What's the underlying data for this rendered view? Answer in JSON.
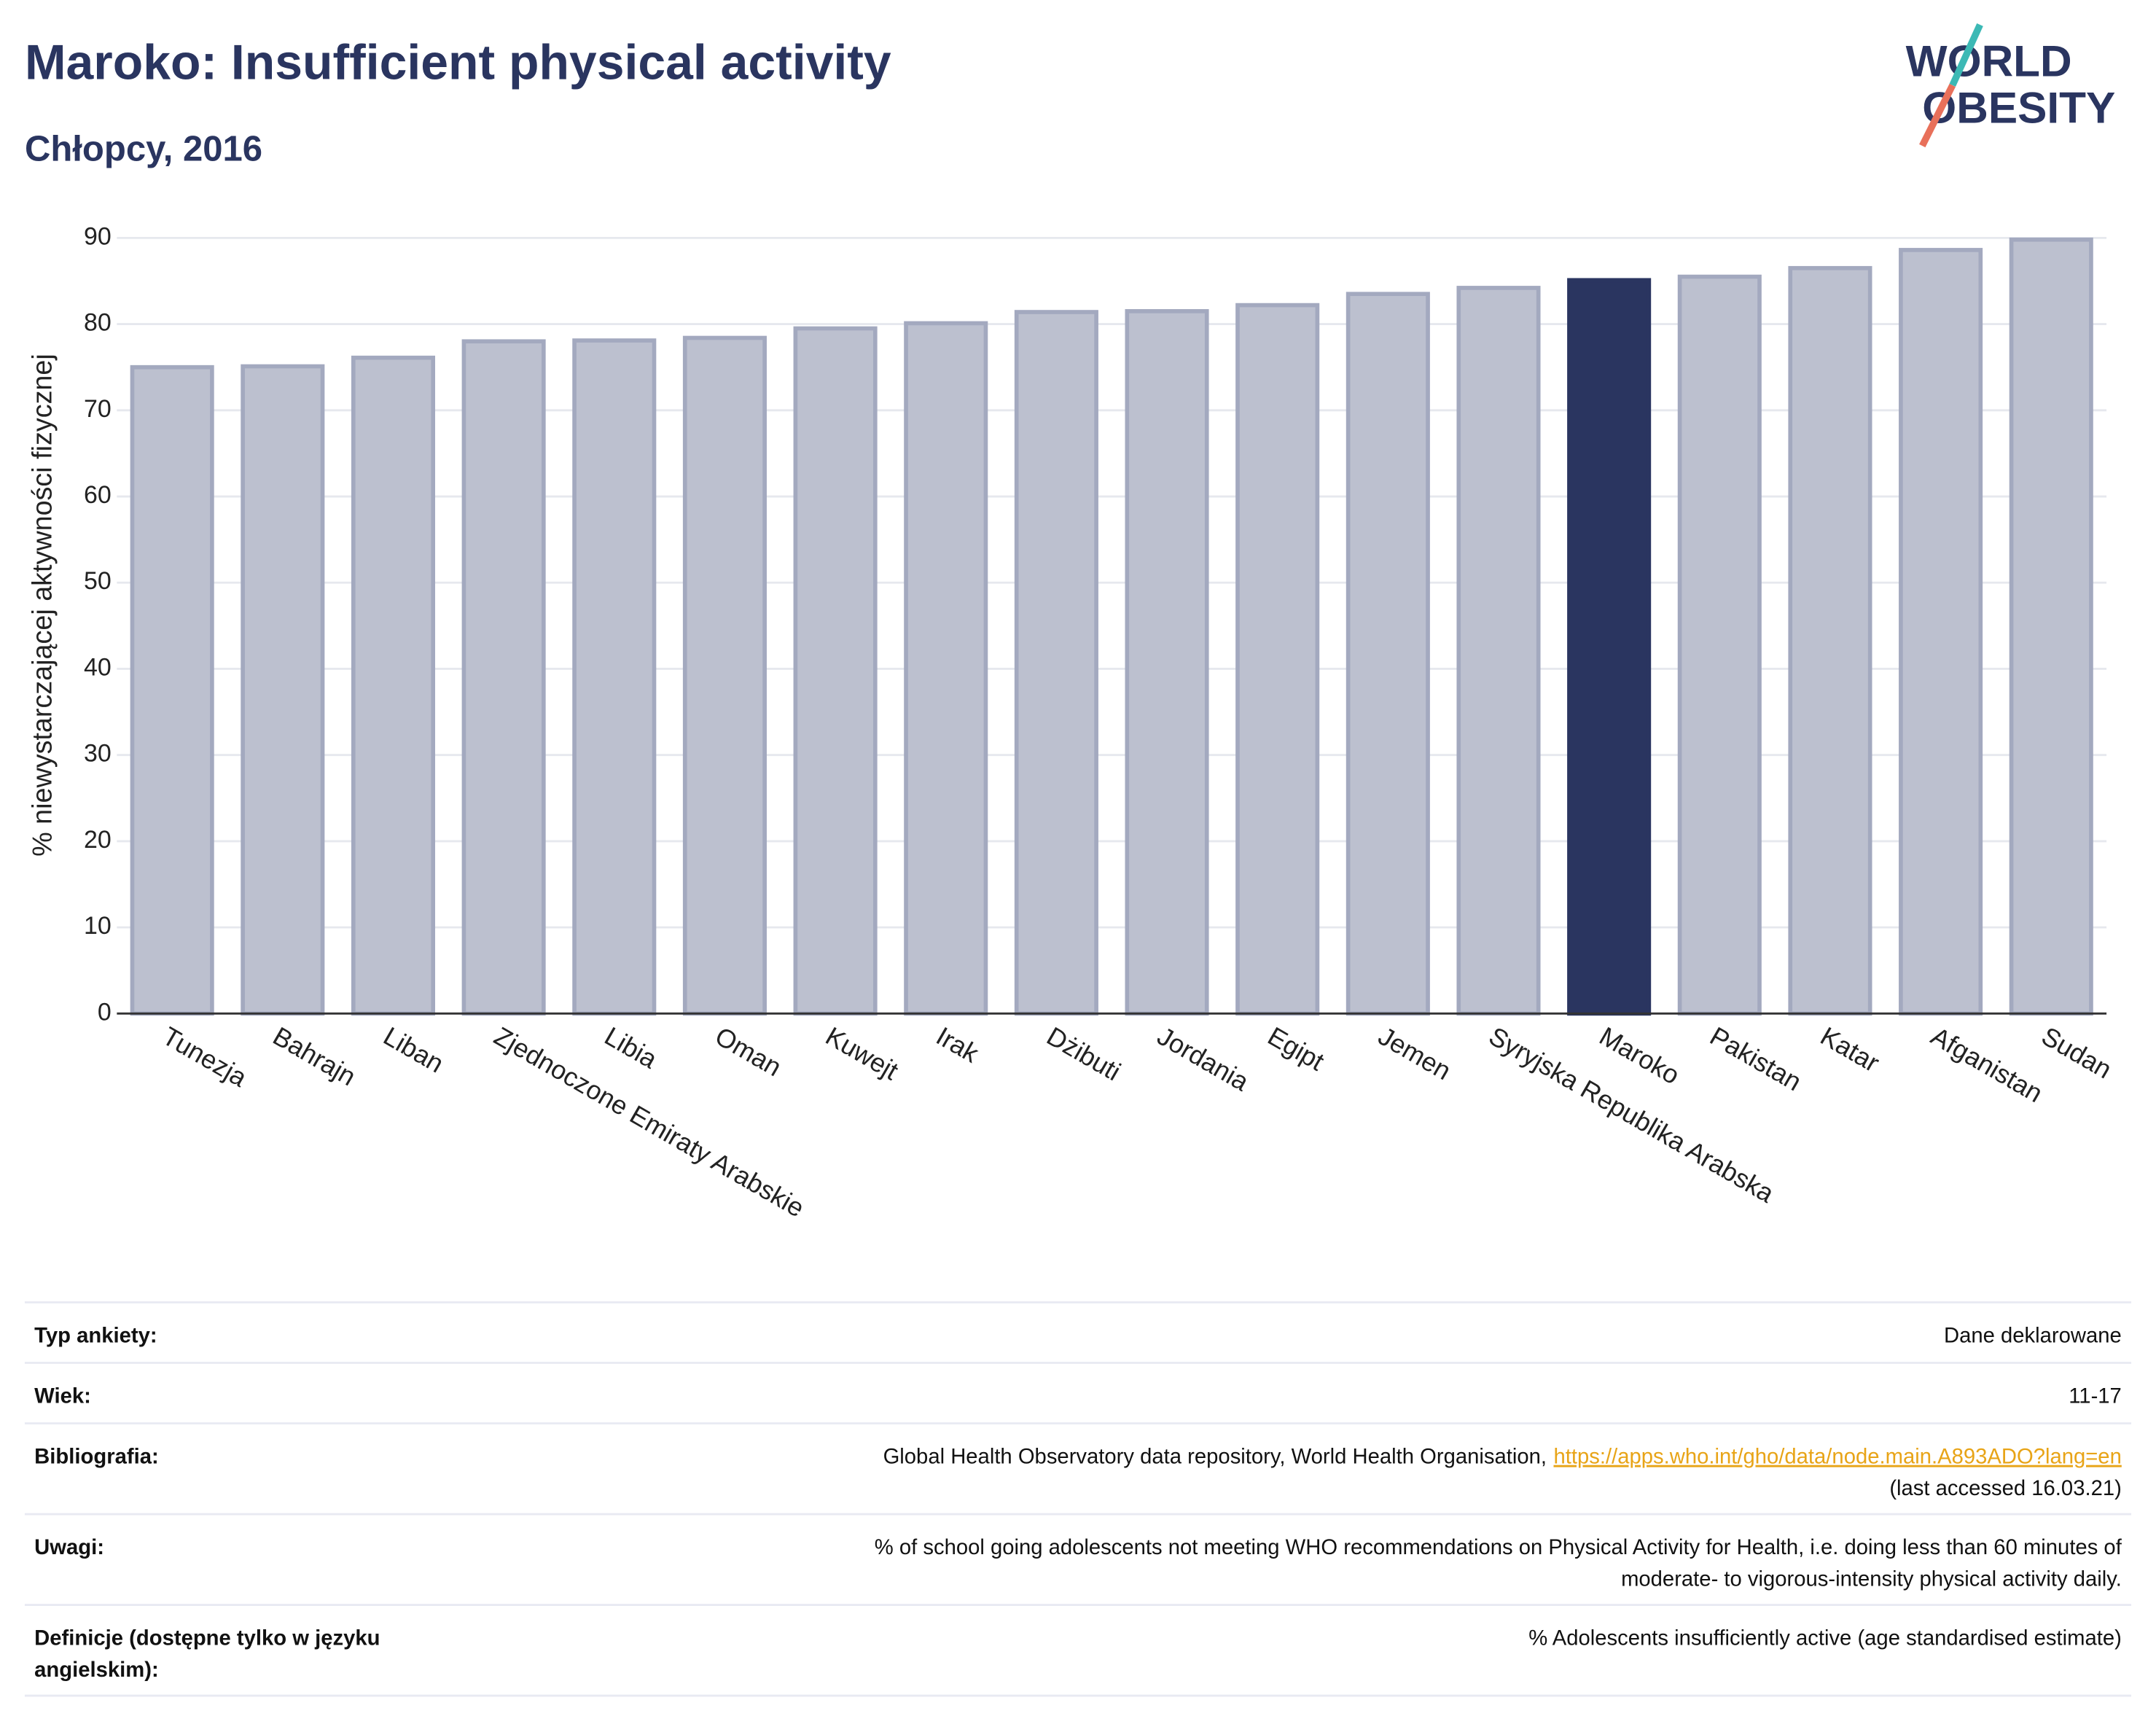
{
  "chart_data": {
    "type": "bar",
    "title": "Maroko: Insufficient physical activity",
    "subtitle": "Chłopcy, 2016",
    "y_label": "% niewystarczającej aktywności fizycznej",
    "categories": [
      "Tunezja",
      "Bahrajn",
      "Liban",
      "Zjednoczone Emiraty Arabskie",
      "Libia",
      "Oman",
      "Kuwejt",
      "Irak",
      "Dżibuti",
      "Jordania",
      "Egipt",
      "Jemen",
      "Syryjska Republika Arabska",
      "Maroko",
      "Pakistan",
      "Katar",
      "Afganistan",
      "Sudan"
    ],
    "values": [
      75,
      75.1,
      76.1,
      78,
      78.1,
      78.4,
      79.5,
      80.1,
      81.4,
      81.5,
      82.2,
      83.5,
      84.2,
      85.1,
      85.5,
      86.5,
      88.6,
      89.8
    ],
    "colors": [
      "#bcc0cf",
      "#bcc0cf",
      "#bcc0cf",
      "#bcc0cf",
      "#bcc0cf",
      "#bcc0cf",
      "#bcc0cf",
      "#bcc0cf",
      "#bcc0cf",
      "#bcc0cf",
      "#bcc0cf",
      "#bcc0cf",
      "#bcc0cf",
      "#2a3560",
      "#bcc0cf",
      "#bcc0cf",
      "#bcc0cf",
      "#bcc0cf"
    ],
    "ylim": [
      0,
      90
    ],
    "yticks": [
      0,
      10,
      20,
      30,
      40,
      50,
      60,
      70,
      80,
      90
    ],
    "grid": true
  },
  "logo": {
    "line1": "WORLD",
    "line2": "OBESITY"
  },
  "table": {
    "rows": [
      {
        "label": [
          "Typ ankiety:"
        ],
        "value": [
          "Dane deklarowane"
        ]
      },
      {
        "label": [
          "Wiek:"
        ],
        "value": [
          "11-17"
        ]
      },
      {
        "label": [
          "Bibliografia:"
        ],
        "value": [
          "Global Health Observatory data repository, World Health Organisation,",
          "(last accessed 16.03.21)"
        ],
        "link": "https://apps.who.int/gho/data/node.main.A893ADO?lang=en"
      },
      {
        "label": [
          "Uwagi:"
        ],
        "value": [
          "% of school going adolescents not meeting WHO recommendations on Physical Activity for Health, i.e. doing less than 60 minutes of",
          "moderate- to vigorous-intensity physical activity daily."
        ]
      },
      {
        "label": [
          "Definicje (dostępne tylko w języku",
          "angielskim):"
        ],
        "value": [
          "% Adolescents insufficiently active (age standardised estimate)"
        ]
      }
    ]
  }
}
